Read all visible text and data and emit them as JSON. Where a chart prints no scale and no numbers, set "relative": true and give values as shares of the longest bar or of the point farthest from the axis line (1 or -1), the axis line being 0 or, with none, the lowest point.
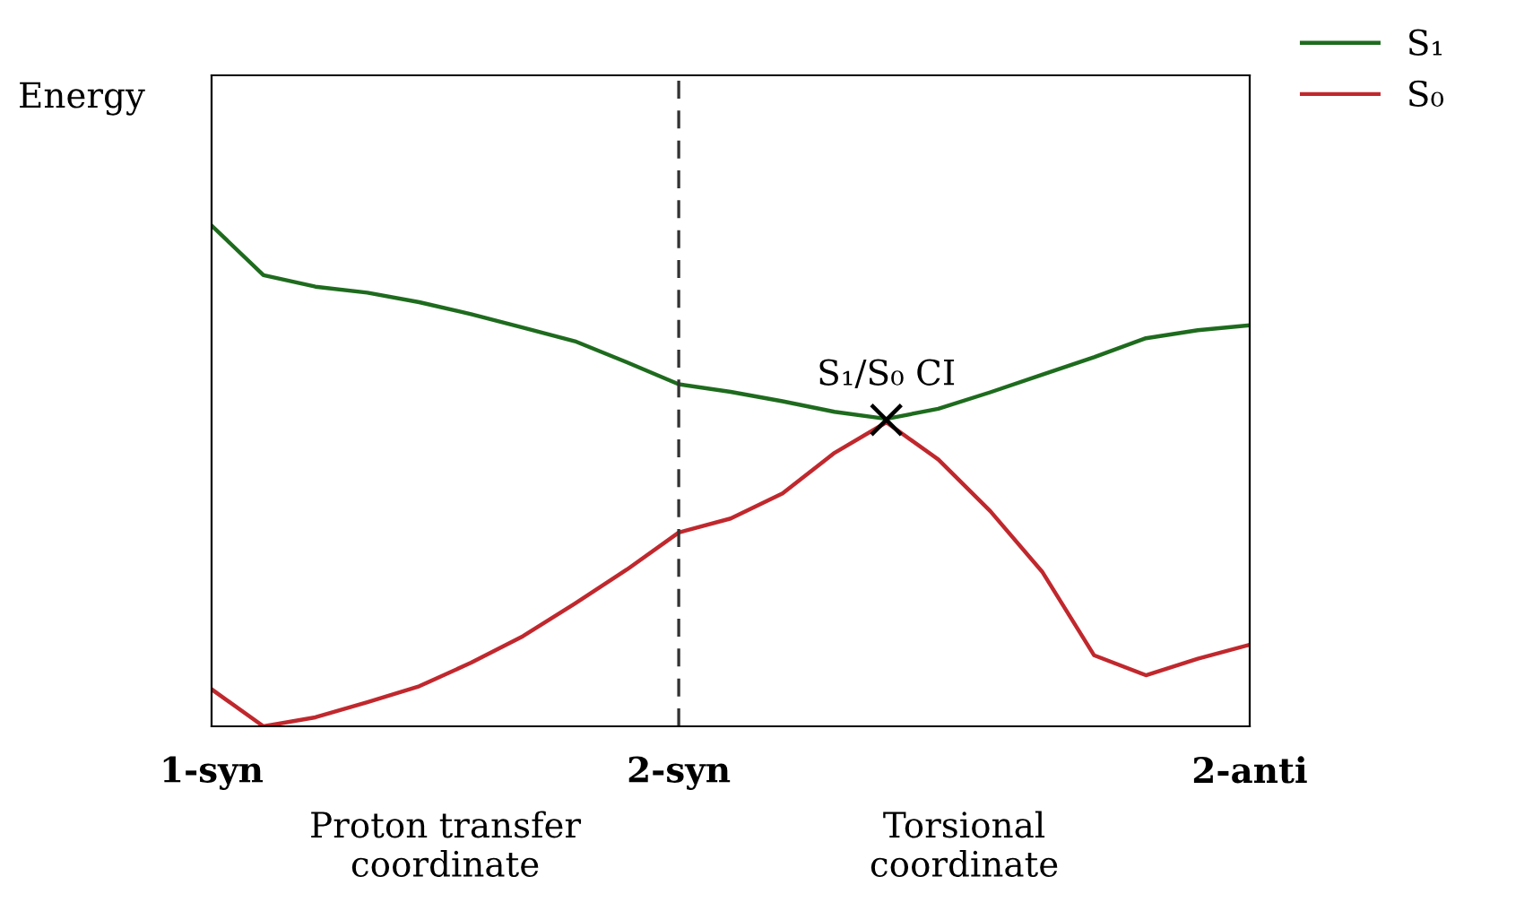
{
  "chart_data": {
    "type": "line",
    "relative": true,
    "ylabel": "Energy",
    "categories": [
      "1-syn",
      null,
      null,
      null,
      null,
      null,
      null,
      null,
      null,
      "2-syn",
      null,
      null,
      null,
      null,
      null,
      null,
      null,
      null,
      null,
      null,
      "2-anti"
    ],
    "series": [
      {
        "name": "S₁",
        "color": "#1e6b1e",
        "values": [
          1.0,
          0.901,
          0.878,
          0.866,
          0.847,
          0.823,
          0.796,
          0.769,
          0.727,
          0.683,
          0.668,
          0.649,
          0.628,
          0.614,
          0.634,
          0.667,
          0.702,
          0.737,
          0.775,
          0.791,
          0.801
        ]
      },
      {
        "name": "S₀",
        "color": "#c0282d",
        "values": [
          0.074,
          0.0,
          0.018,
          0.048,
          0.08,
          0.127,
          0.18,
          0.245,
          0.313,
          0.387,
          0.415,
          0.465,
          0.546,
          0.607,
          0.533,
          0.43,
          0.309,
          0.142,
          0.102,
          0.135,
          0.163
        ]
      }
    ],
    "ref_lines": [
      {
        "axis": "x",
        "value": "2-syn",
        "color": "#333333",
        "line_style": "dashed"
      }
    ],
    "annotations": [
      {
        "text": "S₁/S₀ CI",
        "y": 0.612
      },
      "Proton transfer\ncoordinate",
      "Torsional\ncoordinate"
    ],
    "legend": "top right",
    "marker": "none",
    "line_style": "solid",
    "grid": false
  }
}
